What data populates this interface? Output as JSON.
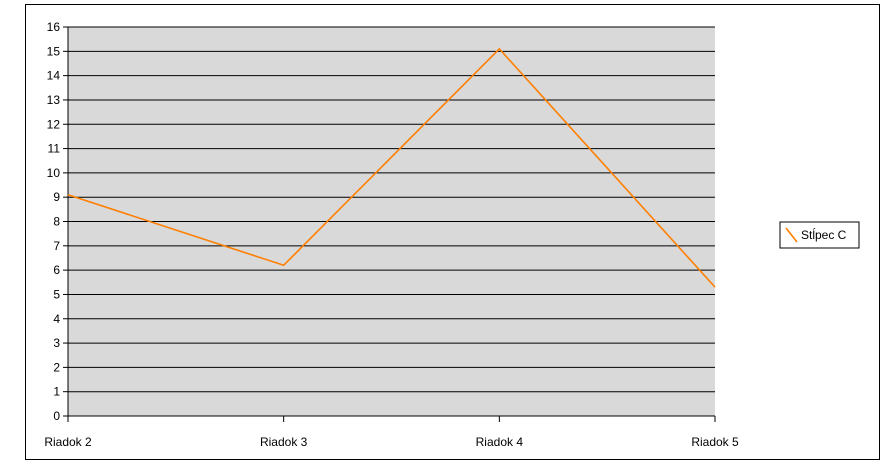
{
  "chart_data": {
    "type": "line",
    "title": "",
    "xlabel": "",
    "ylabel": "",
    "categories": [
      "Riadok 2",
      "Riadok 3",
      "Riadok 4",
      "Riadok 5"
    ],
    "series": [
      {
        "name": "Stĺpec C",
        "color": "#ff7f00",
        "values": [
          9.1,
          6.2,
          15.1,
          5.3
        ]
      }
    ],
    "ylim": [
      0,
      16
    ],
    "yticks": [
      0,
      1,
      2,
      3,
      4,
      5,
      6,
      7,
      8,
      9,
      10,
      11,
      12,
      13,
      14,
      15,
      16
    ],
    "grid": true,
    "plot_background": "#d9d9d9",
    "legend_position": "right"
  }
}
